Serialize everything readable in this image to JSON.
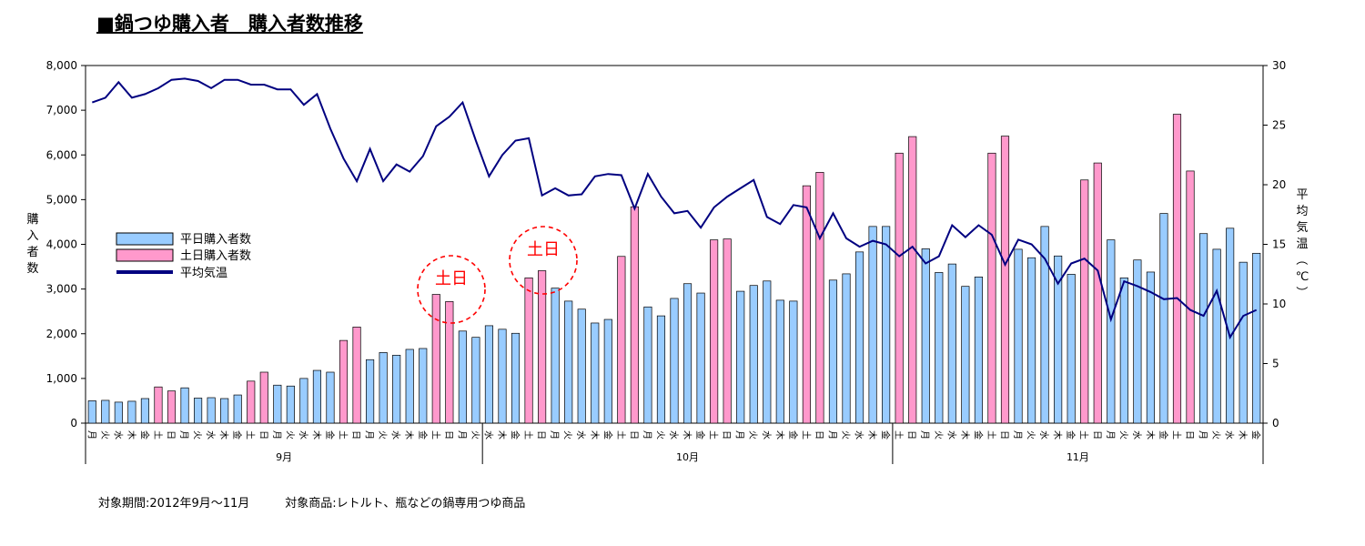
{
  "title": "■鍋つゆ購入者　購入者数推移",
  "footnote": "対象期間:2012年9月〜11月　　　対象商品:レトルト、瓶などの鍋専用つゆ商品",
  "chart_data": {
    "type": "bar",
    "y_left_label": "購入者数",
    "y_right_label": "平均気温（℃）",
    "y_left_ticks": [
      "0",
      "1,000",
      "2,000",
      "3,000",
      "4,000",
      "5,000",
      "6,000",
      "7,000",
      "8,000"
    ],
    "y_right_ticks": [
      "0",
      "5",
      "10",
      "15",
      "20",
      "25",
      "30"
    ],
    "ylim_left": [
      0,
      8000
    ],
    "ylim_right": [
      0,
      30
    ],
    "legend": [
      "平日購入者数",
      "土日購入者数",
      "平均気温"
    ],
    "legend_placement": "left-middle",
    "annotations": [
      "土日",
      "土日"
    ],
    "months": [
      {
        "label": "9月",
        "start": 0,
        "count": 30
      },
      {
        "label": "10月",
        "start": 30,
        "count": 31
      },
      {
        "label": "11月",
        "start": 61,
        "count": 28
      }
    ],
    "days": [
      "月",
      "火",
      "水",
      "木",
      "金",
      "土",
      "日",
      "月",
      "火",
      "水",
      "木",
      "金",
      "土",
      "日",
      "月",
      "火",
      "水",
      "木",
      "金",
      "土",
      "日",
      "月",
      "火",
      "水",
      "木",
      "金",
      "土",
      "日",
      "月",
      "火",
      "水",
      "木",
      "金",
      "土",
      "日",
      "月",
      "火",
      "水",
      "木",
      "金",
      "土",
      "日",
      "月",
      "火",
      "水",
      "木",
      "金",
      "土",
      "日",
      "月",
      "火",
      "水",
      "木",
      "金",
      "土",
      "日",
      "月",
      "火",
      "水",
      "木",
      "金",
      "土",
      "日",
      "月",
      "火",
      "水",
      "木",
      "金",
      "土",
      "日",
      "月",
      "火",
      "水",
      "木",
      "金",
      "土",
      "日",
      "月",
      "火",
      "水",
      "木",
      "金",
      "土",
      "日",
      "月",
      "火",
      "水",
      "木",
      "金"
    ],
    "weekend": [
      0,
      0,
      0,
      0,
      0,
      1,
      1,
      0,
      0,
      0,
      0,
      0,
      1,
      1,
      0,
      0,
      0,
      0,
      0,
      1,
      1,
      0,
      0,
      0,
      0,
      0,
      1,
      1,
      0,
      0,
      0,
      0,
      0,
      1,
      1,
      0,
      0,
      0,
      0,
      0,
      1,
      1,
      0,
      0,
      0,
      0,
      0,
      1,
      1,
      0,
      0,
      0,
      0,
      0,
      1,
      1,
      0,
      0,
      0,
      0,
      0,
      1,
      1,
      0,
      0,
      0,
      0,
      0,
      1,
      1,
      0,
      0,
      0,
      0,
      0,
      1,
      1,
      0,
      0,
      0,
      0,
      0,
      1,
      1,
      0,
      0,
      0,
      0,
      0
    ],
    "series": [
      {
        "name": "平日購入者数",
        "color": "#99ccff"
      },
      {
        "name": "土日購入者数",
        "color": "#ff99cc"
      },
      {
        "name": "平均気温",
        "color": "#000080"
      }
    ],
    "purchasers": [
      500,
      510,
      470,
      490,
      550,
      810,
      720,
      790,
      560,
      570,
      550,
      630,
      940,
      1140,
      850,
      830,
      1000,
      1180,
      1140,
      1850,
      2150,
      1420,
      1580,
      1520,
      1650,
      1670,
      2880,
      2720,
      2060,
      1920,
      2180,
      2100,
      2010,
      3250,
      3410,
      3020,
      2730,
      2550,
      2240,
      2320,
      3730,
      4840,
      2600,
      2400,
      2790,
      3120,
      2910,
      4100,
      4120,
      2950,
      3080,
      3180,
      2750,
      2730,
      5310,
      5610,
      3200,
      3340,
      3830,
      4400,
      4400,
      6040,
      6410,
      3900,
      3370,
      3560,
      3060,
      3270,
      6040,
      6420,
      3890,
      3700,
      4400,
      3740,
      3330,
      5440,
      5820,
      4100,
      3250,
      3650,
      3380,
      4690,
      6910,
      5640,
      4240,
      3890,
      4360,
      3600,
      3800
    ],
    "temperature": [
      26.9,
      27.3,
      28.6,
      27.3,
      27.6,
      28.1,
      28.8,
      28.9,
      28.7,
      28.1,
      28.8,
      28.8,
      28.4,
      28.4,
      28.0,
      28.0,
      26.7,
      27.6,
      24.7,
      22.2,
      20.3,
      23.0,
      20.3,
      21.7,
      21.1,
      22.4,
      24.9,
      25.7,
      26.9,
      23.7,
      20.7,
      22.5,
      23.7,
      23.9,
      19.1,
      19.7,
      19.1,
      19.2,
      20.7,
      20.9,
      20.8,
      18.0,
      20.9,
      19.0,
      17.6,
      17.8,
      16.4,
      18.1,
      19.0,
      19.7,
      20.4,
      17.3,
      16.7,
      18.3,
      18.1,
      15.5,
      17.6,
      15.5,
      14.8,
      15.3,
      15.0,
      14.0,
      14.8,
      13.4,
      14.0,
      16.6,
      15.6,
      16.6,
      15.8,
      13.3,
      15.4,
      15.0,
      13.8,
      11.7,
      13.4,
      13.8,
      12.8,
      8.7,
      11.9,
      11.5,
      11.0,
      10.4,
      10.5,
      9.5,
      9.0,
      11.1,
      7.2,
      9.0,
      9.5
    ]
  }
}
